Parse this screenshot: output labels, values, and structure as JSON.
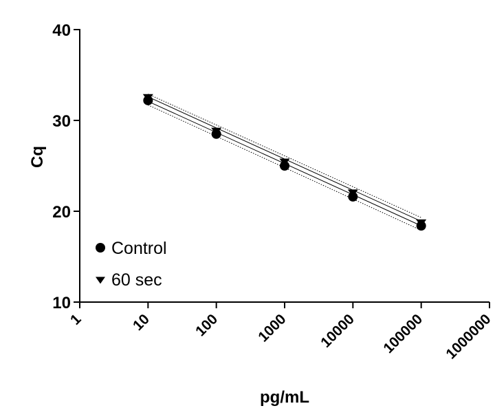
{
  "chart_data": {
    "type": "scatter",
    "title": "",
    "xlabel": "pg/mL",
    "ylabel": "Cq",
    "x_scale": "log",
    "xlim": [
      1,
      1000000
    ],
    "ylim": [
      10,
      40
    ],
    "x_ticks": [
      1,
      10,
      100,
      1000,
      10000,
      100000,
      1000000
    ],
    "x_tick_labels": [
      "1",
      "10",
      "100",
      "1000",
      "10000",
      "100000",
      "1000000"
    ],
    "y_ticks": [
      10,
      20,
      30,
      40
    ],
    "y_tick_labels": [
      "10",
      "20",
      "30",
      "40"
    ],
    "grid": false,
    "legend_position": "bottom-left",
    "series": [
      {
        "name": "Control",
        "marker": "circle",
        "color": "#000000",
        "x": [
          10,
          100,
          1000,
          10000,
          100000
        ],
        "y": [
          32.2,
          28.5,
          25.0,
          21.6,
          18.4
        ],
        "fit_line": {
          "x": [
            10,
            100000
          ],
          "y": [
            32.1,
            18.4
          ]
        }
      },
      {
        "name": "60 sec",
        "marker": "triangle-down",
        "color": "#000000",
        "x": [
          10,
          100,
          1000,
          10000,
          100000
        ],
        "y": [
          32.6,
          28.9,
          25.5,
          22.1,
          18.8
        ],
        "fit_line": {
          "x": [
            10,
            100000
          ],
          "y": [
            32.6,
            18.9
          ]
        }
      }
    ],
    "confidence_band": {
      "style": "dotted",
      "x": [
        10,
        100000
      ],
      "upper": [
        32.9,
        19.3
      ],
      "lower": [
        31.7,
        17.9
      ]
    }
  }
}
